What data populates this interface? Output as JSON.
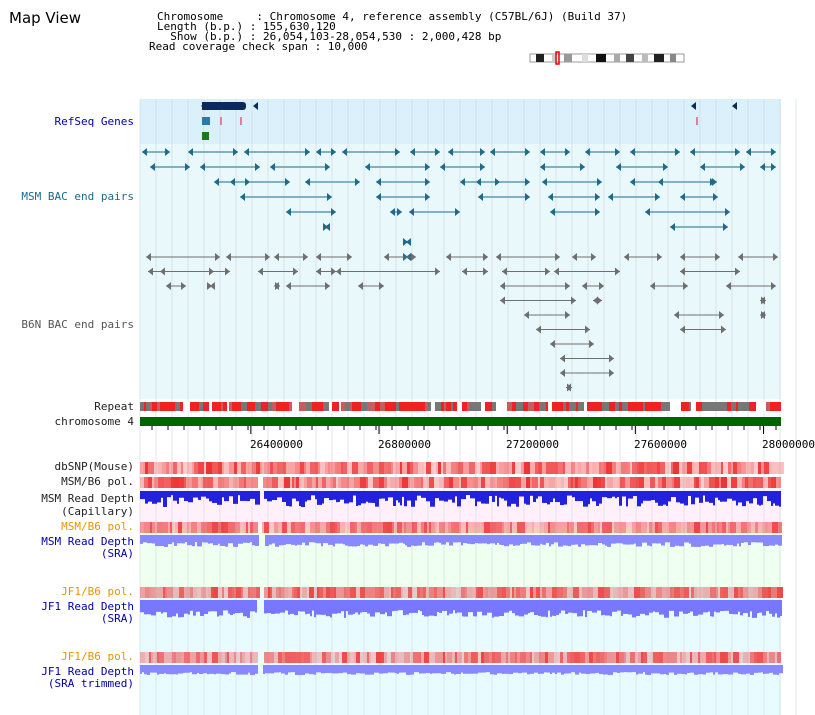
{
  "header": {
    "title": "Map View",
    "info_lines": [
      "Chromosome     : Chromosome 4, reference assembly (C57BL/6J) (Build 37)",
      "Length (b.p.) : 155,630,120",
      "  Show (b.p.) : 26,054,103-28,054,530 : 2,000,428 bp",
      "Read coverage check span : 10,000"
    ]
  },
  "tracks": {
    "refseq": "RefSeq Genes",
    "msm_bac": "MSM BAC end pairs",
    "b6n_bac": "B6N BAC end pairs",
    "repeat": "Repeat",
    "chromosome": "chromosome 4",
    "dbsnp": "dbSNP(Mouse)",
    "msm_b6_pol_1": "MSM/B6 pol.",
    "msm_read_depth_cap_1": "MSM Read Depth",
    "msm_read_depth_cap_2": "(Capillary)",
    "msm_b6_pol_2": "MSM/B6 pol.",
    "msm_read_depth_sra_1": "MSM Read Depth",
    "msm_read_depth_sra_2": "(SRA)",
    "jf1_b6_pol_1": "JF1/B6 pol.",
    "jf1_read_depth_sra_1": "JF1 Read Depth",
    "jf1_read_depth_sra_2": "(SRA)",
    "jf1_b6_pol_2": "JF1/B6 pol.",
    "jf1_read_depth_trim_1": "JF1 Read Depth",
    "jf1_read_depth_trim_2": "(SRA trimmed)"
  },
  "axis": {
    "ticks": [
      "26400000",
      "26800000",
      "27200000",
      "27600000",
      "28000000"
    ],
    "tick_values": [
      26400000,
      26800000,
      27200000,
      27600000,
      28000000
    ],
    "start": 26054103,
    "end": 28054530
  },
  "colors": {
    "refseq_bg": "#daf0fb",
    "bac_bg": "#e8f8fb",
    "gene": "#0a2a5a",
    "msm_pair": "#1e6a8c",
    "b6n_pair": "#6f6f6f",
    "chrom_bar": "#006400",
    "snp_red": "#ee3333",
    "depth_blue": "#2222dd",
    "depth_light": "#8888ff",
    "cap_bg": "#fff0fb",
    "sra_bg": "#effff0"
  }
}
